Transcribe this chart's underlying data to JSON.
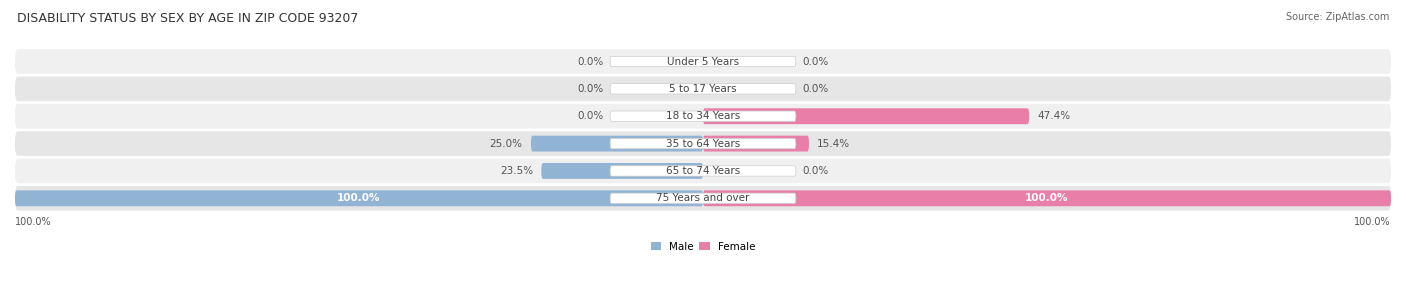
{
  "title": "DISABILITY STATUS BY SEX BY AGE IN ZIP CODE 93207",
  "source": "Source: ZipAtlas.com",
  "categories": [
    "Under 5 Years",
    "5 to 17 Years",
    "18 to 34 Years",
    "35 to 64 Years",
    "65 to 74 Years",
    "75 Years and over"
  ],
  "male_values": [
    0.0,
    0.0,
    0.0,
    25.0,
    23.5,
    100.0
  ],
  "female_values": [
    0.0,
    0.0,
    47.4,
    15.4,
    0.0,
    100.0
  ],
  "male_color": "#92b4d4",
  "female_color": "#e87fa8",
  "male_label": "Male",
  "female_label": "Female",
  "row_bg_colors": [
    "#f0f0f0",
    "#e6e6e6"
  ],
  "max_value": 100.0,
  "title_fontsize": 9,
  "label_fontsize": 7.5,
  "tick_fontsize": 7,
  "source_fontsize": 7
}
